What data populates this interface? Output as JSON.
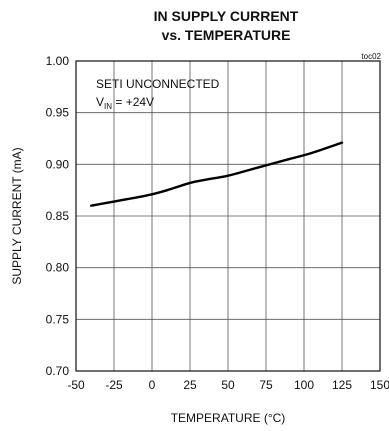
{
  "chart_data": {
    "type": "line",
    "title_line1": "IN SUPPLY CURRENT",
    "title_line2": "vs. TEMPERATURE",
    "figure_code": "toc02",
    "xlabel": "TEMPERATURE (°C)",
    "ylabel": "SUPPLY CURRENT (mA)",
    "xlim": [
      -50,
      150
    ],
    "ylim": [
      0.7,
      1.0
    ],
    "x_ticks": [
      -50,
      -25,
      0,
      25,
      50,
      75,
      100,
      125,
      150
    ],
    "x_tick_labels": [
      "-50",
      "-25",
      "0",
      "25",
      "50",
      "75",
      "100",
      "125",
      "150"
    ],
    "y_ticks": [
      0.7,
      0.75,
      0.8,
      0.85,
      0.9,
      0.95,
      1.0
    ],
    "y_tick_labels": [
      "0.70",
      "0.75",
      "0.80",
      "0.85",
      "0.90",
      "0.95",
      "1.00"
    ],
    "grid": true,
    "annotation": {
      "line1": "SETI UNCONNECTED",
      "line2_main": "V",
      "line2_sub": "IN",
      "line2_rest": " = +24V"
    },
    "series": [
      {
        "x": [
          -40,
          -25,
          -10,
          0,
          10,
          25,
          35,
          50,
          65,
          75,
          90,
          105,
          125
        ],
        "y": [
          0.86,
          0.864,
          0.868,
          0.871,
          0.875,
          0.882,
          0.885,
          0.889,
          0.895,
          0.899,
          0.905,
          0.911,
          0.921
        ]
      }
    ]
  }
}
